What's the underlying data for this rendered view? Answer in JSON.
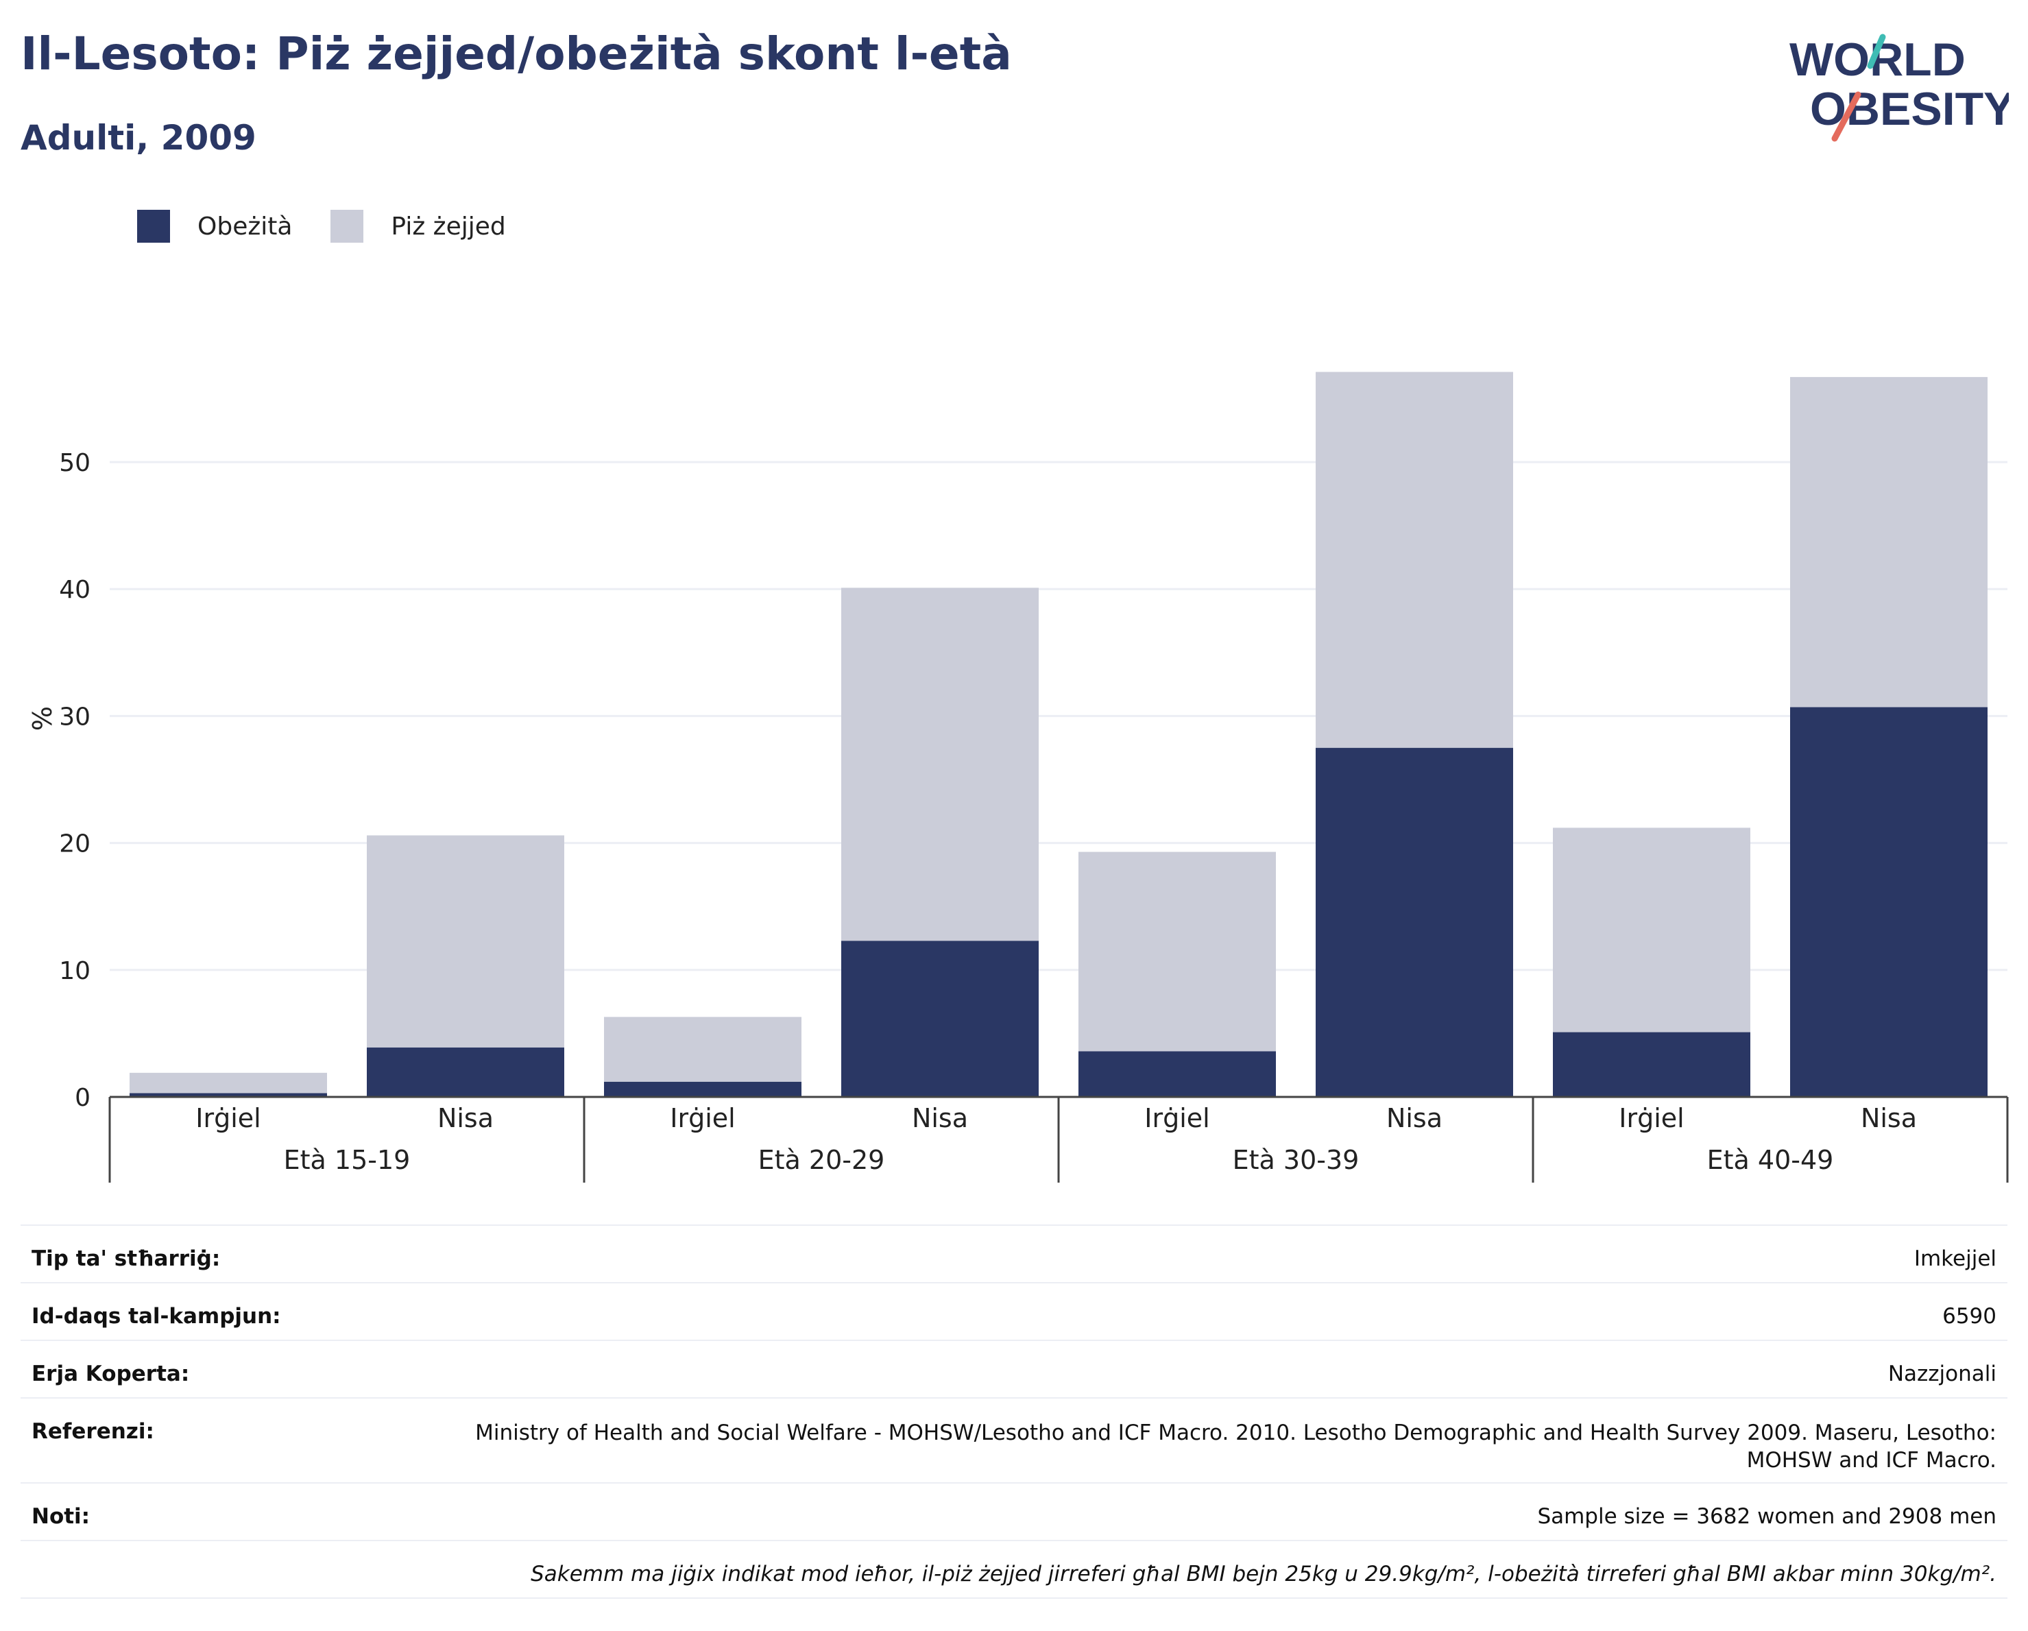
{
  "title": "Il-Lesoto: Piż żejjed/obeżità skont l-età",
  "subtitle": "Adulti, 2009",
  "logo": {
    "line1": "WORLD",
    "line2": "OBESITY"
  },
  "colors": {
    "obesity": "#2a3764",
    "overweight": "#cbcdd9",
    "title": "#2a3764",
    "logo_teal": "#3fbcb4",
    "logo_coral": "#e46b5d"
  },
  "legend": [
    {
      "label": "Obeżità",
      "color": "#2a3764"
    },
    {
      "label": "Piż żejjed",
      "color": "#cbcdd9"
    }
  ],
  "chart_data": {
    "type": "bar",
    "stacked": true,
    "ylabel": "%",
    "xlabel": "",
    "ylim": [
      0,
      60
    ],
    "yticks": [
      0,
      10,
      20,
      30,
      40,
      50
    ],
    "grid": true,
    "legend_position": "top-left",
    "groups": [
      "Età 15-19",
      "Età 20-29",
      "Età 30-39",
      "Età 40-49"
    ],
    "categories": [
      "Irġiel",
      "Nisa",
      "Irġiel",
      "Nisa",
      "Irġiel",
      "Nisa",
      "Irġiel",
      "Nisa"
    ],
    "series": [
      {
        "name": "Obeżità",
        "values": [
          0.3,
          3.9,
          1.2,
          12.3,
          3.6,
          27.5,
          5.1,
          30.7
        ]
      },
      {
        "name": "Piż żejjed",
        "values": [
          1.6,
          16.7,
          5.1,
          27.8,
          15.7,
          29.6,
          16.1,
          26.0
        ]
      }
    ]
  },
  "info": {
    "survey_type_label": "Tip ta' stħarriġ:",
    "survey_type_value": "Imkejjel",
    "sample_size_label": "Id-daqs tal-kampjun:",
    "sample_size_value": "6590",
    "area_label": "Erja Koperta:",
    "area_value": "Nazzjonali",
    "references_label": "Referenzi:",
    "references_value": "Ministry of Health and Social Welfare - MOHSW/Lesotho and ICF Macro. 2010. Lesotho Demographic and Health Survey 2009. Maseru, Lesotho: MOHSW and ICF Macro.",
    "notes_label": "Noti:",
    "notes_value": "Sample size = 3682 women and 2908 men",
    "footnote": "Sakemm ma jiġix indikat mod ieħor, il-piż żejjed jirreferi għal BMI bejn 25kg u 29.9kg/m², l-obeżità tirreferi għal BMI akbar minn 30kg/m²."
  }
}
